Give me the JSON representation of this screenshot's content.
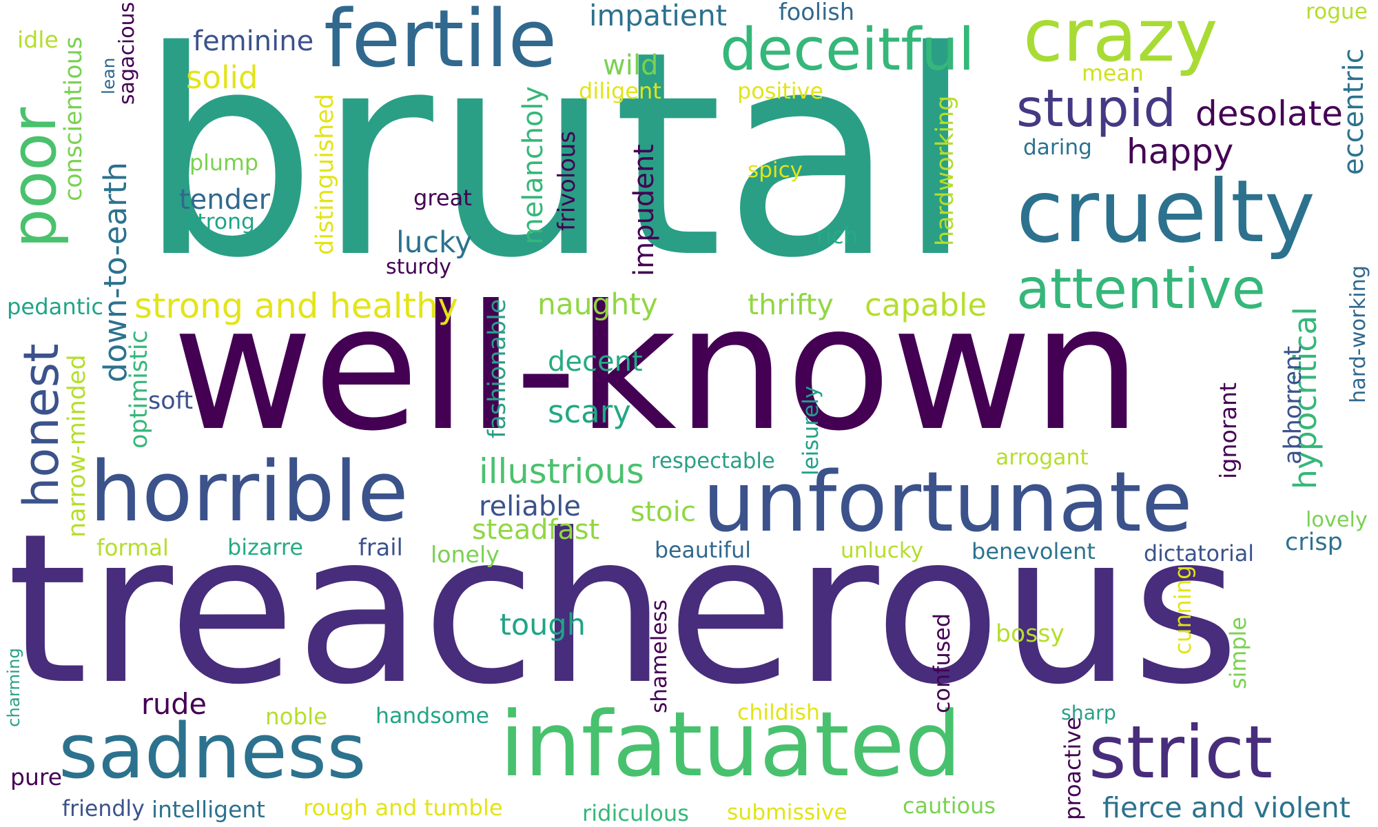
{
  "words": [
    {
      "text": "brutal",
      "color": "#2a9f86",
      "rotate": false
    },
    {
      "text": "well-known",
      "color": "#440154",
      "rotate": false
    },
    {
      "text": "treacherous",
      "color": "#472d7b",
      "rotate": false
    },
    {
      "text": "unfortunate",
      "color": "#3b528b",
      "rotate": false
    },
    {
      "text": "horrible",
      "color": "#3b528b",
      "rotate": false
    },
    {
      "text": "infatuated",
      "color": "#48c16e",
      "rotate": false
    },
    {
      "text": "sadness",
      "color": "#2c728e",
      "rotate": false
    },
    {
      "text": "strict",
      "color": "#472d7b",
      "rotate": false
    },
    {
      "text": "cruelty",
      "color": "#2c728e",
      "rotate": false
    },
    {
      "text": "crazy",
      "color": "#a8db34",
      "rotate": false
    },
    {
      "text": "fertile",
      "color": "#31688e",
      "rotate": false
    },
    {
      "text": "deceitful",
      "color": "#35b779",
      "rotate": false
    },
    {
      "text": "poor",
      "color": "#4ac16d",
      "rotate": true
    },
    {
      "text": "attentive",
      "color": "#35b779",
      "rotate": false
    },
    {
      "text": "stupid",
      "color": "#443983",
      "rotate": false
    },
    {
      "text": "honest",
      "color": "#3b528b",
      "rotate": true
    },
    {
      "text": "desolate",
      "color": "#440154",
      "rotate": false
    },
    {
      "text": "strong and healthy",
      "color": "#e4e419",
      "rotate": false
    },
    {
      "text": "down-to-earth",
      "color": "#2c728e",
      "rotate": true
    },
    {
      "text": "happy",
      "color": "#440154",
      "rotate": false
    },
    {
      "text": "capable",
      "color": "#b5de2b",
      "rotate": false
    },
    {
      "text": "illustrious",
      "color": "#4ac16d",
      "rotate": false
    },
    {
      "text": "hypocritical",
      "color": "#35b779",
      "rotate": true
    },
    {
      "text": "naughty",
      "color": "#90d743",
      "rotate": false
    },
    {
      "text": "thrifty",
      "color": "#90d743",
      "rotate": false
    },
    {
      "text": "tender",
      "color": "#31688e",
      "rotate": false
    },
    {
      "text": "scary",
      "color": "#22a884",
      "rotate": false
    },
    {
      "text": "decent",
      "color": "#25ab82",
      "rotate": false
    },
    {
      "text": "solid",
      "color": "#e2e418",
      "rotate": false
    },
    {
      "text": "impatient",
      "color": "#2c728e",
      "rotate": false
    },
    {
      "text": "feminine",
      "color": "#3b528b",
      "rotate": false
    },
    {
      "text": "conscientious",
      "color": "#7ad151",
      "rotate": true
    },
    {
      "text": "distinguished",
      "color": "#e2e418",
      "rotate": true
    },
    {
      "text": "melancholy",
      "color": "#35b779",
      "rotate": true
    },
    {
      "text": "impudent",
      "color": "#440154",
      "rotate": true
    },
    {
      "text": "hardworking",
      "color": "#b5de2b",
      "rotate": true
    },
    {
      "text": "eccentric",
      "color": "#2c728e",
      "rotate": true
    },
    {
      "text": "fashionable",
      "color": "#2a9f86",
      "rotate": true
    },
    {
      "text": "abhorrent",
      "color": "#3b528b",
      "rotate": true
    },
    {
      "text": "narrow-minded",
      "color": "#b5de2b",
      "rotate": true
    },
    {
      "text": "optimistic",
      "color": "#35b779",
      "rotate": true
    },
    {
      "text": "steadfast",
      "color": "#90d743",
      "rotate": false
    },
    {
      "text": "reliable",
      "color": "#3b528b",
      "rotate": false
    },
    {
      "text": "stoic",
      "color": "#90d743",
      "rotate": false
    },
    {
      "text": "tough",
      "color": "#20a486",
      "rotate": false
    },
    {
      "text": "lucky",
      "color": "#2c728e",
      "rotate": false
    },
    {
      "text": "wild",
      "color": "#7ad151",
      "rotate": false
    },
    {
      "text": "rude",
      "color": "#440154",
      "rotate": false
    },
    {
      "text": "fierce and violent",
      "color": "#2c728e",
      "rotate": false
    },
    {
      "text": "frivolous",
      "color": "#440154",
      "rotate": true
    },
    {
      "text": "shameless",
      "color": "#440154",
      "rotate": true
    },
    {
      "text": "confused",
      "color": "#440154",
      "rotate": true
    },
    {
      "text": "ignorant",
      "color": "#440154",
      "rotate": true
    },
    {
      "text": "hard-working",
      "color": "#31688e",
      "rotate": true
    },
    {
      "text": "proactive",
      "color": "#440154",
      "rotate": true
    },
    {
      "text": "leisurely",
      "color": "#1fa188",
      "rotate": true
    },
    {
      "text": "cunning",
      "color": "#e2e418",
      "rotate": true
    },
    {
      "text": "simple",
      "color": "#7ad151",
      "rotate": true
    },
    {
      "text": "charming",
      "color": "#2a9f86",
      "rotate": true
    },
    {
      "text": "sagacious",
      "color": "#440154",
      "rotate": true
    },
    {
      "text": "lean",
      "color": "#31688e",
      "rotate": true
    },
    {
      "text": "rogue",
      "color": "#b5de2b",
      "rotate": false
    },
    {
      "text": "foolish",
      "color": "#31688e",
      "rotate": false
    },
    {
      "text": "mean",
      "color": "#d0e11c",
      "rotate": false
    },
    {
      "text": "daring",
      "color": "#2c728e",
      "rotate": false
    },
    {
      "text": "idle",
      "color": "#b5de2b",
      "rotate": false
    },
    {
      "text": "diligent",
      "color": "#e2e418",
      "rotate": false
    },
    {
      "text": "positive",
      "color": "#e2e418",
      "rotate": false
    },
    {
      "text": "plump",
      "color": "#7ad151",
      "rotate": false
    },
    {
      "text": "strong",
      "color": "#20a486",
      "rotate": false
    },
    {
      "text": "great",
      "color": "#440154",
      "rotate": false
    },
    {
      "text": "sturdy",
      "color": "#440154",
      "rotate": false
    },
    {
      "text": "spicy",
      "color": "#e2e418",
      "rotate": false
    },
    {
      "text": "rich",
      "color": "#25ab82",
      "rotate": false
    },
    {
      "text": "pedantic",
      "color": "#20a486",
      "rotate": false
    },
    {
      "text": "soft",
      "color": "#3b528b",
      "rotate": false
    },
    {
      "text": "respectable",
      "color": "#2a9f86",
      "rotate": false
    },
    {
      "text": "arrogant",
      "color": "#b5de2b",
      "rotate": false
    },
    {
      "text": "lovely",
      "color": "#7ad151",
      "rotate": false
    },
    {
      "text": "crisp",
      "color": "#2c728e",
      "rotate": false
    },
    {
      "text": "formal",
      "color": "#b5de2b",
      "rotate": false
    },
    {
      "text": "bizarre",
      "color": "#25ab82",
      "rotate": false
    },
    {
      "text": "frail",
      "color": "#3b528b",
      "rotate": false
    },
    {
      "text": "lonely",
      "color": "#7ad151",
      "rotate": false
    },
    {
      "text": "beautiful",
      "color": "#31688e",
      "rotate": false
    },
    {
      "text": "unlucky",
      "color": "#b5de2b",
      "rotate": false
    },
    {
      "text": "benevolent",
      "color": "#2c728e",
      "rotate": false
    },
    {
      "text": "dictatorial",
      "color": "#3b528b",
      "rotate": false
    },
    {
      "text": "bossy",
      "color": "#b5de2b",
      "rotate": false
    },
    {
      "text": "sharp",
      "color": "#2a9f86",
      "rotate": false
    },
    {
      "text": "noble",
      "color": "#b5de2b",
      "rotate": false
    },
    {
      "text": "handsome",
      "color": "#20a486",
      "rotate": false
    },
    {
      "text": "childish",
      "color": "#e2e418",
      "rotate": false
    },
    {
      "text": "pure",
      "color": "#440154",
      "rotate": false
    },
    {
      "text": "friendly",
      "color": "#3b528b",
      "rotate": false
    },
    {
      "text": "intelligent",
      "color": "#2c728e",
      "rotate": false
    },
    {
      "text": "rough and tumble",
      "color": "#e2e418",
      "rotate": false
    },
    {
      "text": "ridiculous",
      "color": "#35b779",
      "rotate": false
    },
    {
      "text": "submissive",
      "color": "#e2e418",
      "rotate": false
    },
    {
      "text": "cautious",
      "color": "#7ad151",
      "rotate": false
    }
  ]
}
